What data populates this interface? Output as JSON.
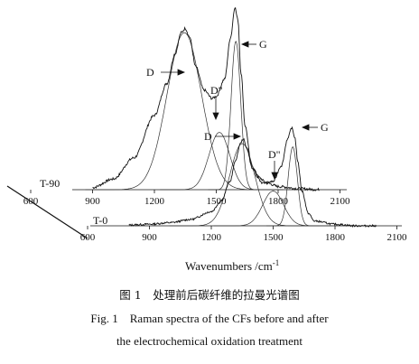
{
  "chart_data": {
    "type": "line",
    "x_axis_label": "Wavenumbers /cm",
    "x_axis_label_sup": "-1",
    "x_ticks": [
      600,
      900,
      1200,
      1500,
      1800,
      2100
    ],
    "x_range": [
      600,
      2100
    ],
    "series": [
      {
        "name": "T-90",
        "spectrum": [
          [
            900,
            0.01
          ],
          [
            1000,
            0.05
          ],
          [
            1100,
            0.15
          ],
          [
            1200,
            0.35
          ],
          [
            1260,
            0.5
          ],
          [
            1300,
            0.64
          ],
          [
            1330,
            0.74
          ],
          [
            1350,
            0.76
          ],
          [
            1370,
            0.72
          ],
          [
            1400,
            0.58
          ],
          [
            1440,
            0.47
          ],
          [
            1480,
            0.43
          ],
          [
            1500,
            0.44
          ],
          [
            1540,
            0.52
          ],
          [
            1570,
            0.72
          ],
          [
            1590,
            0.86
          ],
          [
            1605,
            0.8
          ],
          [
            1620,
            0.55
          ],
          [
            1640,
            0.3
          ],
          [
            1670,
            0.12
          ],
          [
            1700,
            0.06
          ],
          [
            1750,
            0.03
          ],
          [
            1800,
            0.015
          ],
          [
            1900,
            0.005
          ],
          [
            2000,
            0.0
          ]
        ],
        "components": [
          {
            "label": "D",
            "center": 1345,
            "height": 0.74,
            "width": 150
          },
          {
            "label": "D\"",
            "center": 1515,
            "height": 0.27,
            "width": 90
          },
          {
            "label": "G",
            "center": 1595,
            "height": 0.7,
            "width": 42
          }
        ]
      },
      {
        "name": "T-0",
        "spectrum": [
          [
            800,
            0.005
          ],
          [
            900,
            0.01
          ],
          [
            1000,
            0.02
          ],
          [
            1100,
            0.04
          ],
          [
            1200,
            0.09
          ],
          [
            1250,
            0.16
          ],
          [
            1290,
            0.28
          ],
          [
            1320,
            0.42
          ],
          [
            1340,
            0.52
          ],
          [
            1355,
            0.55
          ],
          [
            1370,
            0.5
          ],
          [
            1400,
            0.36
          ],
          [
            1450,
            0.27
          ],
          [
            1500,
            0.28
          ],
          [
            1540,
            0.38
          ],
          [
            1570,
            0.55
          ],
          [
            1590,
            0.62
          ],
          [
            1605,
            0.56
          ],
          [
            1620,
            0.4
          ],
          [
            1640,
            0.22
          ],
          [
            1670,
            0.08
          ],
          [
            1700,
            0.03
          ],
          [
            1800,
            0.01
          ],
          [
            1900,
            0.0
          ],
          [
            2000,
            0.0
          ]
        ],
        "components": [
          {
            "label": "D",
            "center": 1350,
            "height": 0.52,
            "width": 110
          },
          {
            "label": "D\"",
            "center": 1500,
            "height": 0.22,
            "width": 90
          },
          {
            "label": "G",
            "center": 1595,
            "height": 0.5,
            "width": 40
          }
        ]
      }
    ]
  },
  "caption": {
    "cn": "图 1　处理前后碳纤维的拉曼光谱图",
    "en_line1": "Fig. 1　Raman spectra of the CFs before and after",
    "en_line2": "the electrochemical oxidation treatment"
  }
}
